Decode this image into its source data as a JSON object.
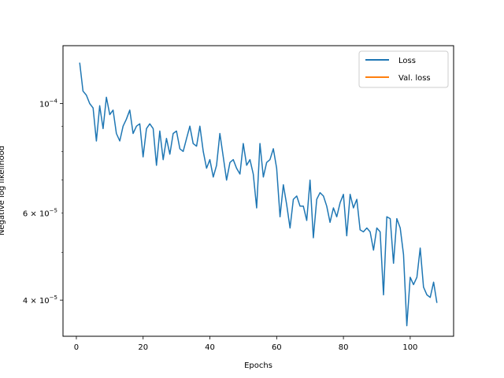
{
  "chart_data": {
    "type": "line",
    "title": "",
    "xlabel": "Epochs",
    "ylabel": "Negative log likelihood",
    "y_scale": "log",
    "xlim": [
      -4,
      113
    ],
    "ylim": [
      3.38e-05,
      0.000131
    ],
    "x_ticks": [
      0,
      20,
      40,
      60,
      80,
      100
    ],
    "x_tick_labels": [
      "0",
      "20",
      "40",
      "60",
      "80",
      "100"
    ],
    "y_major_ticks": [
      0.0001,
      4e-05
    ],
    "y_major_tick_labels": [
      {
        "mant": "10",
        "exp": "−4"
      },
      {
        "mant": "4 × 10",
        "exp": "−5"
      }
    ],
    "y_minor_ticks": [
      5e-05,
      6e-05,
      7e-05,
      8e-05,
      9e-05
    ],
    "y_minor_tick_labels": [
      {
        "mant": "6 × 10",
        "exp": "−5"
      }
    ],
    "grid": false,
    "legend_position": "top-right",
    "series": [
      {
        "name": "Loss",
        "color": "#1f77b4",
        "x": [
          1,
          2,
          3,
          4,
          5,
          6,
          7,
          8,
          9,
          10,
          11,
          12,
          13,
          14,
          15,
          16,
          17,
          18,
          19,
          20,
          21,
          22,
          23,
          24,
          25,
          26,
          27,
          28,
          29,
          30,
          31,
          32,
          33,
          34,
          35,
          36,
          37,
          38,
          39,
          40,
          41,
          42,
          43,
          44,
          45,
          46,
          47,
          48,
          49,
          50,
          51,
          52,
          53,
          54,
          55,
          56,
          57,
          58,
          59,
          60,
          61,
          62,
          63,
          64,
          65,
          66,
          67,
          68,
          69,
          70,
          71,
          72,
          73,
          74,
          75,
          76,
          77,
          78,
          79,
          80,
          81,
          82,
          83,
          84,
          85,
          86,
          87,
          88,
          89,
          90,
          91,
          92,
          93,
          94,
          95,
          96,
          97,
          98,
          99,
          100,
          101,
          102,
          103,
          104,
          105,
          106,
          107,
          108
        ],
        "values": [
          0.000121,
          0.000106,
          0.000104,
          0.0001,
          9.8e-05,
          8.4e-05,
          9.9e-05,
          8.9e-05,
          0.000103,
          9.5e-05,
          9.7e-05,
          8.7e-05,
          8.4e-05,
          9e-05,
          9.3e-05,
          9.7e-05,
          8.7e-05,
          9e-05,
          9.1e-05,
          7.8e-05,
          8.9e-05,
          9.1e-05,
          8.9e-05,
          7.5e-05,
          8.8e-05,
          7.7e-05,
          8.5e-05,
          7.9e-05,
          8.7e-05,
          8.8e-05,
          8.1e-05,
          8e-05,
          8.5e-05,
          9e-05,
          8.3e-05,
          8.2e-05,
          9e-05,
          8e-05,
          7.4e-05,
          7.7e-05,
          7.1e-05,
          7.5e-05,
          8.7e-05,
          7.8e-05,
          7e-05,
          7.6e-05,
          7.7e-05,
          7.4e-05,
          7.2e-05,
          8.3e-05,
          7.5e-05,
          7.7e-05,
          7.2e-05,
          6.15e-05,
          8.3e-05,
          7.1e-05,
          7.6e-05,
          7.7e-05,
          8.1e-05,
          7.4e-05,
          5.9e-05,
          6.85e-05,
          6.25e-05,
          5.6e-05,
          6.4e-05,
          6.5e-05,
          6.2e-05,
          6.2e-05,
          5.8e-05,
          7e-05,
          5.35e-05,
          6.4e-05,
          6.6e-05,
          6.5e-05,
          6.2e-05,
          5.75e-05,
          6.15e-05,
          5.9e-05,
          6.3e-05,
          6.55e-05,
          5.4e-05,
          6.55e-05,
          6.15e-05,
          6.4e-05,
          5.55e-05,
          5.5e-05,
          5.6e-05,
          5.5e-05,
          5.05e-05,
          5.6e-05,
          5.5e-05,
          4.1e-05,
          5.9e-05,
          5.85e-05,
          4.75e-05,
          5.85e-05,
          5.6e-05,
          4.95e-05,
          3.55e-05,
          4.45e-05,
          4.3e-05,
          4.45e-05,
          5.1e-05,
          4.25e-05,
          4.1e-05,
          4.05e-05,
          4.35e-05,
          3.95e-05
        ]
      },
      {
        "name": "Val. loss",
        "color": "#ff7f0e",
        "x": [],
        "values": []
      }
    ]
  }
}
